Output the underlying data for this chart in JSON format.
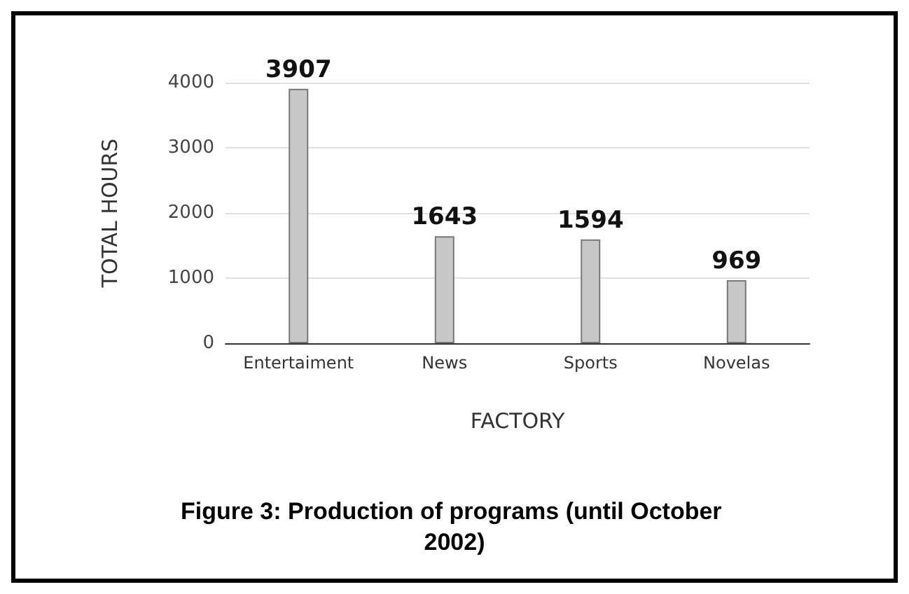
{
  "chart_data": {
    "type": "bar",
    "title": "Figure 3: Production of programs (until October 2002)",
    "xlabel": "FACTORY",
    "ylabel": "TOTAL HOURS",
    "categories": [
      "Entertaiment",
      "News",
      "Sports",
      "Novelas"
    ],
    "values": [
      3907,
      1643,
      1594,
      969
    ],
    "color": "#c8c8c8",
    "ylim": [
      0,
      4000
    ],
    "yticks": [
      0,
      1000,
      2000,
      3000,
      4000
    ],
    "grid": "y",
    "data_labels": true
  }
}
